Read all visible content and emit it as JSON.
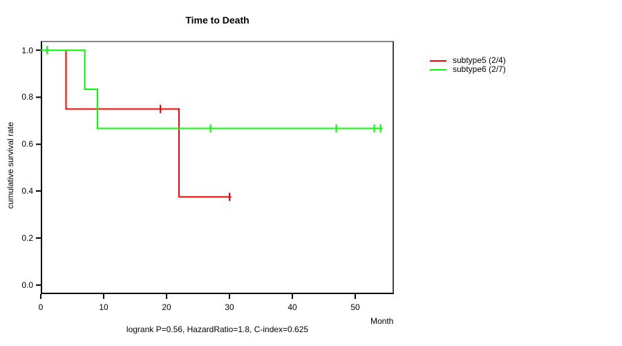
{
  "chart_data": {
    "type": "line",
    "variant": "kaplan_meier_step_function",
    "title": "Time to Death",
    "xlabel": "Month",
    "ylabel": "cumulative survival rate",
    "xlim": [
      0,
      56
    ],
    "ylim": [
      0,
      1.0
    ],
    "grid": false,
    "legend_position": "right-outside-top",
    "footer": "logrank P=0.56, HazardRatio=1.8, C-index=0.625",
    "xticks": [
      {
        "v": 0,
        "t": "0"
      },
      {
        "v": 10,
        "t": "10"
      },
      {
        "v": 20,
        "t": "20"
      },
      {
        "v": 30,
        "t": "30"
      },
      {
        "v": 40,
        "t": "40"
      },
      {
        "v": 50,
        "t": "50"
      }
    ],
    "yticks": [
      {
        "v": 0.0,
        "t": "0.0"
      },
      {
        "v": 0.2,
        "t": "0.2"
      },
      {
        "v": 0.4,
        "t": "0.4"
      },
      {
        "v": 0.6,
        "t": "0.6"
      },
      {
        "v": 0.8,
        "t": "0.8"
      },
      {
        "v": 1.0,
        "t": "1.0"
      }
    ],
    "series": [
      {
        "name": "subtype5 (2/4)",
        "color": "#ff0000",
        "steps": [
          [
            0,
            1.0
          ],
          [
            4,
            1.0
          ],
          [
            4,
            0.75
          ],
          [
            22,
            0.75
          ],
          [
            22,
            0.375
          ],
          [
            30.3,
            0.375
          ]
        ],
        "censored": [
          [
            19,
            0.75
          ],
          [
            30,
            0.375
          ]
        ]
      },
      {
        "name": "subtype6 (2/7)",
        "color": "#00ff00",
        "steps": [
          [
            0,
            1.0
          ],
          [
            7,
            1.0
          ],
          [
            7,
            0.8333
          ],
          [
            9,
            0.8333
          ],
          [
            9,
            0.6667
          ],
          [
            54.3,
            0.6667
          ]
        ],
        "censored": [
          [
            1,
            1.0
          ],
          [
            27,
            0.6667
          ],
          [
            47,
            0.6667
          ],
          [
            53,
            0.6667
          ],
          [
            54,
            0.6667
          ]
        ]
      }
    ]
  },
  "colors": {
    "background": "#ffffff",
    "axis": "#000000",
    "box_top": "#888888",
    "box_right": "#404040",
    "text": "#000000"
  }
}
